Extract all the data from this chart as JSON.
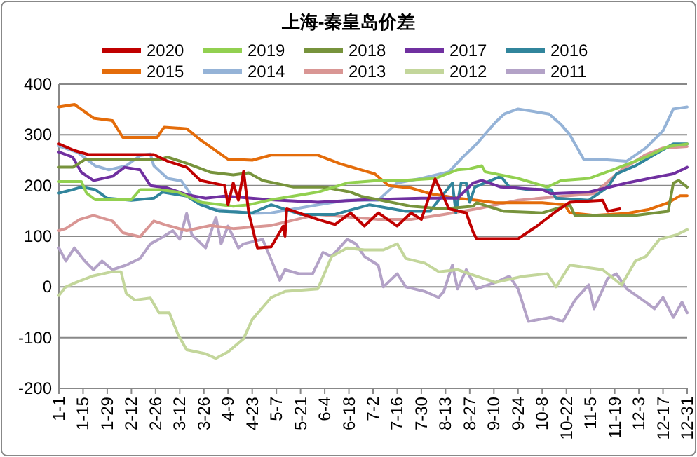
{
  "chart_data": {
    "type": "line",
    "title": "上海-秦皇岛价差",
    "xlim": [
      "--01-01",
      "--12-31"
    ],
    "xticks": [
      {
        "value": "--01-01",
        "label": "1-1"
      },
      {
        "value": "--01-15",
        "label": "1-15"
      },
      {
        "value": "--01-29",
        "label": "1-29"
      },
      {
        "value": "--02-12",
        "label": "2-12"
      },
      {
        "value": "--02-26",
        "label": "2-26"
      },
      {
        "value": "--03-12",
        "label": "3-12"
      },
      {
        "value": "--03-26",
        "label": "3-26"
      },
      {
        "value": "--04-09",
        "label": "4-9"
      },
      {
        "value": "--04-23",
        "label": "4-23"
      },
      {
        "value": "--05-07",
        "label": "5-7"
      },
      {
        "value": "--05-21",
        "label": "5-21"
      },
      {
        "value": "--06-04",
        "label": "6-4"
      },
      {
        "value": "--06-18",
        "label": "6-18"
      },
      {
        "value": "--07-02",
        "label": "7-2"
      },
      {
        "value": "--07-16",
        "label": "7-16"
      },
      {
        "value": "--07-30",
        "label": "7-30"
      },
      {
        "value": "--08-13",
        "label": "8-13"
      },
      {
        "value": "--08-27",
        "label": "8-27"
      },
      {
        "value": "--09-10",
        "label": "9-10"
      },
      {
        "value": "--09-24",
        "label": "9-24"
      },
      {
        "value": "--10-08",
        "label": "10-8"
      },
      {
        "value": "--10-22",
        "label": "10-22"
      },
      {
        "value": "--11-05",
        "label": "11-5"
      },
      {
        "value": "--11-19",
        "label": "11-19"
      },
      {
        "value": "--12-03",
        "label": "12-3"
      },
      {
        "value": "--12-17",
        "label": "12-17"
      },
      {
        "value": "--12-31",
        "label": "12-31"
      }
    ],
    "ylim": [
      -200,
      400
    ],
    "yticks": [
      -200,
      -100,
      0,
      100,
      200,
      300,
      400
    ],
    "grid": "y",
    "legend": "top",
    "series": [
      {
        "name": "2020",
        "color": "#c00000",
        "x": [
          "--01-01",
          "--01-10",
          "--01-18",
          "--02-09",
          "--02-25",
          "--03-05",
          "--03-16",
          "--03-24",
          "--04-07",
          "--04-09",
          "--04-12",
          "--04-15",
          "--04-18",
          "--04-21",
          "--04-26",
          "--05-04",
          "--05-11",
          "--05-12",
          "--05-13",
          "--05-31",
          "--06-10",
          "--06-19",
          "--06-27",
          "--07-05",
          "--07-16",
          "--07-24",
          "--07-30",
          "--08-07",
          "--08-15",
          "--08-25",
          "--08-29",
          "--08-31",
          "--09-24",
          "--10-05",
          "--10-16",
          "--10-24",
          "--11-12",
          "--11-15",
          "--11-22"
        ],
        "values": [
          282,
          269,
          261,
          261,
          261,
          248,
          236,
          210,
          200,
          162,
          205,
          171,
          228,
          146,
          77,
          79,
          120,
          100,
          154,
          133,
          123,
          146,
          120,
          146,
          120,
          146,
          133,
          213,
          154,
          146,
          108,
          95,
          95,
          120,
          149,
          167,
          171,
          149,
          154
        ]
      },
      {
        "name": "2019",
        "color": "#92d050",
        "x": [
          "--01-01",
          "--01-14",
          "--01-17",
          "--01-22",
          "--02-12",
          "--02-17",
          "--02-28",
          "--03-11",
          "--03-24",
          "--04-12",
          "--04-21",
          "--05-04",
          "--05-31",
          "--06-17",
          "--07-05",
          "--07-19",
          "--08-07",
          "--08-20",
          "--08-27",
          "--09-03",
          "--09-05",
          "--09-24",
          "--10-11",
          "--10-19",
          "--11-04",
          "--11-18",
          "--12-07",
          "--12-20",
          "--12-31"
        ],
        "values": [
          208,
          208,
          185,
          172,
          172,
          192,
          192,
          187,
          167,
          159,
          162,
          172,
          187,
          205,
          210,
          210,
          214,
          231,
          233,
          239,
          227,
          214,
          197,
          210,
          214,
          231,
          256,
          277,
          282
        ]
      },
      {
        "name": "2018",
        "color": "#77933c",
        "x": [
          "--01-01",
          "--01-09",
          "--01-16",
          "--02-17",
          "--02-28",
          "--03-05",
          "--03-16",
          "--03-30",
          "--04-12",
          "--04-21",
          "--04-29",
          "--05-17",
          "--06-03",
          "--06-19",
          "--06-25",
          "--07-24",
          "--08-12",
          "--08-29",
          "--08-31",
          "--09-16",
          "--10-08",
          "--10-24",
          "--10-27",
          "--12-01",
          "--12-20",
          "--12-23",
          "--12-26",
          "--12-31"
        ],
        "values": [
          236,
          236,
          251,
          251,
          251,
          256,
          244,
          226,
          221,
          225,
          210,
          197,
          197,
          187,
          179,
          159,
          154,
          159,
          166,
          149,
          146,
          162,
          141,
          141,
          149,
          205,
          210,
          197
        ]
      },
      {
        "name": "2017",
        "color": "#7030a0",
        "x": [
          "--01-01",
          "--01-09",
          "--01-14",
          "--01-21",
          "--02-01",
          "--02-08",
          "--02-17",
          "--02-23",
          "--03-05",
          "--03-16",
          "--03-27",
          "--04-07",
          "--05-04",
          "--05-31",
          "--06-27",
          "--07-30",
          "--08-20",
          "--08-29",
          "--09-03",
          "--09-14",
          "--10-08",
          "--10-13",
          "--11-04",
          "--11-26",
          "--12-09",
          "--12-23",
          "--12-31"
        ],
        "values": [
          266,
          256,
          226,
          210,
          218,
          236,
          231,
          200,
          195,
          182,
          175,
          179,
          172,
          167,
          172,
          175,
          175,
          205,
          210,
          197,
          192,
          184,
          187,
          205,
          214,
          223,
          236
        ]
      },
      {
        "name": "2016",
        "color": "#31859c",
        "x": [
          "--01-01",
          "--01-09",
          "--01-14",
          "--01-22",
          "--01-29",
          "--02-12",
          "--02-25",
          "--03-02",
          "--03-16",
          "--03-24",
          "--04-04",
          "--04-23",
          "--05-04",
          "--05-21",
          "--06-10",
          "--06-30",
          "--07-21",
          "--08-04",
          "--08-09",
          "--08-17",
          "--08-19",
          "--08-22",
          "--08-25",
          "--08-27",
          "--08-30",
          "--09-14",
          "--09-19",
          "--09-30",
          "--10-13",
          "--10-16",
          "--11-04",
          "--11-15",
          "--11-20",
          "--12-01",
          "--12-12",
          "--12-23",
          "--12-31"
        ],
        "values": [
          185,
          192,
          197,
          192,
          175,
          171,
          175,
          187,
          179,
          162,
          149,
          146,
          162,
          143,
          143,
          162,
          149,
          149,
          171,
          205,
          146,
          205,
          205,
          167,
          197,
          218,
          197,
          192,
          192,
          175,
          171,
          197,
          223,
          239,
          261,
          282,
          282
        ]
      },
      {
        "name": "2015",
        "color": "#e46c0a",
        "x": [
          "--01-01",
          "--01-10",
          "--01-21",
          "--02-01",
          "--02-07",
          "--02-27",
          "--03-03",
          "--03-16",
          "--03-24",
          "--04-09",
          "--04-23",
          "--05-04",
          "--05-31",
          "--06-13",
          "--07-03",
          "--07-11",
          "--07-24",
          "--08-04",
          "--08-20",
          "--08-31",
          "--09-11",
          "--10-08",
          "--10-21",
          "--10-24",
          "--11-07",
          "--11-26",
          "--12-09",
          "--12-20",
          "--12-27",
          "--12-31"
        ],
        "values": [
          355,
          360,
          333,
          328,
          295,
          295,
          315,
          312,
          290,
          252,
          250,
          260,
          260,
          243,
          223,
          200,
          195,
          184,
          175,
          171,
          166,
          166,
          162,
          146,
          141,
          145,
          153,
          166,
          180,
          180
        ]
      },
      {
        "name": "2014",
        "color": "#95b3d7",
        "x": [
          "--01-01",
          "--01-12",
          "--01-22",
          "--01-30",
          "--02-09",
          "--02-17",
          "--02-23",
          "--02-25",
          "--03-05",
          "--03-13",
          "--03-19",
          "--03-30",
          "--04-09",
          "--04-23",
          "--05-04",
          "--05-31",
          "--06-17",
          "--07-05",
          "--07-16",
          "--07-30",
          "--08-15",
          "--08-23",
          "--08-31",
          "--09-11",
          "--09-16",
          "--09-24",
          "--10-12",
          "--10-19",
          "--10-24",
          "--11-01",
          "--11-09",
          "--11-26",
          "--12-07",
          "--12-17",
          "--12-23",
          "--12-31"
        ],
        "values": [
          278,
          265,
          239,
          231,
          239,
          259,
          262,
          239,
          214,
          209,
          180,
          154,
          150,
          145,
          146,
          162,
          171,
          171,
          205,
          214,
          227,
          256,
          282,
          325,
          341,
          351,
          341,
          320,
          300,
          252,
          252,
          248,
          274,
          308,
          351,
          355
        ]
      },
      {
        "name": "2013",
        "color": "#d99694",
        "x": [
          "--01-01",
          "--01-05",
          "--01-13",
          "--01-21",
          "--02-01",
          "--02-07",
          "--02-17",
          "--02-25",
          "--03-05",
          "--03-16",
          "--03-30",
          "--04-12",
          "--05-04",
          "--05-31",
          "--06-17",
          "--07-05",
          "--07-24",
          "--08-12",
          "--08-31",
          "--09-24",
          "--10-21",
          "--11-07",
          "--11-23",
          "--12-07",
          "--12-17",
          "--12-31"
        ],
        "values": [
          111,
          115,
          133,
          141,
          130,
          107,
          99,
          130,
          121,
          111,
          121,
          115,
          121,
          143,
          138,
          133,
          133,
          143,
          154,
          171,
          179,
          184,
          231,
          261,
          274,
          277
        ]
      },
      {
        "name": "2012",
        "color": "#c3d69b",
        "x": [
          "--01-01",
          "--01-05",
          "--01-11",
          "--01-21",
          "--02-01",
          "--02-06",
          "--02-09",
          "--02-14",
          "--02-23",
          "--02-28",
          "--03-06",
          "--03-11",
          "--03-16",
          "--03-27",
          "--04-02",
          "--04-09",
          "--04-18",
          "--04-23",
          "--05-04",
          "--05-12",
          "--05-31",
          "--06-08",
          "--06-17",
          "--06-27",
          "--07-08",
          "--07-16",
          "--07-21",
          "--08-01",
          "--08-09",
          "--08-20",
          "--08-31",
          "--09-11",
          "--09-27",
          "--10-11",
          "--10-16",
          "--10-24",
          "--11-12",
          "--11-23",
          "--12-01",
          "--12-07",
          "--12-15",
          "--12-25",
          "--12-31"
        ],
        "values": [
          -17,
          0,
          9,
          22,
          30,
          30,
          -13,
          -26,
          -22,
          -51,
          -51,
          -94,
          -124,
          -132,
          -141,
          -128,
          -102,
          -64,
          -21,
          -9,
          -4,
          60,
          77,
          73,
          73,
          85,
          56,
          47,
          30,
          34,
          21,
          9,
          21,
          26,
          0,
          43,
          34,
          4,
          51,
          60,
          94,
          103,
          113
        ]
      },
      {
        "name": "2011",
        "color": "#b3a2c7",
        "x": [
          "--01-01",
          "--01-05",
          "--01-10",
          "--01-16",
          "--01-21",
          "--01-26",
          "--02-01",
          "--02-09",
          "--02-17",
          "--02-23",
          "--02-28",
          "--03-08",
          "--03-12",
          "--03-16",
          "--03-19",
          "--03-27",
          "--04-02",
          "--04-05",
          "--04-09",
          "--04-15",
          "--04-18",
          "--04-29",
          "--05-09",
          "--05-12",
          "--05-20",
          "--05-28",
          "--06-03",
          "--06-08",
          "--06-17",
          "--06-22",
          "--06-27",
          "--07-05",
          "--07-08",
          "--07-16",
          "--07-21",
          "--08-01",
          "--08-09",
          "--08-12",
          "--08-17",
          "--08-20",
          "--08-25",
          "--08-31",
          "--09-11",
          "--09-19",
          "--09-24",
          "--09-30",
          "--10-13",
          "--10-20",
          "--10-27",
          "--11-04",
          "--11-07",
          "--11-15",
          "--11-20",
          "--11-26",
          "--12-07",
          "--12-12",
          "--12-17",
          "--12-23",
          "--12-28",
          "--12-31"
        ],
        "values": [
          77,
          51,
          77,
          51,
          34,
          51,
          34,
          43,
          56,
          85,
          94,
          111,
          94,
          145,
          103,
          77,
          137,
          85,
          120,
          77,
          85,
          94,
          13,
          34,
          26,
          26,
          68,
          60,
          94,
          85,
          60,
          43,
          0,
          26,
          0,
          -9,
          -21,
          -9,
          43,
          -4,
          34,
          -4,
          9,
          21,
          -4,
          -68,
          -60,
          -68,
          -26,
          4,
          -43,
          17,
          26,
          -4,
          -30,
          -43,
          -21,
          -60,
          -30,
          -51
        ]
      }
    ]
  }
}
